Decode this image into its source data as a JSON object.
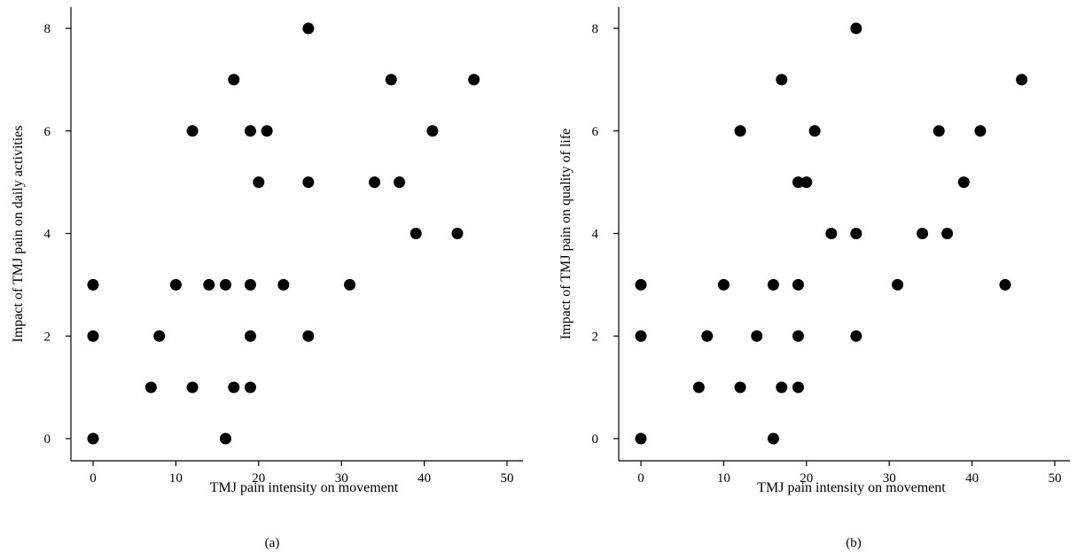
{
  "chart_data": [
    {
      "type": "scatter",
      "panel_label": "(a)",
      "xlabel": "TMJ pain intensity on movement",
      "ylabel": "Impact of TMJ pain on daily activities",
      "xlim": [
        0,
        50
      ],
      "ylim": [
        0,
        8
      ],
      "xticks": [
        0,
        10,
        20,
        30,
        40,
        50
      ],
      "yticks": [
        0,
        2,
        4,
        6,
        8
      ],
      "grid": false,
      "points": [
        [
          26,
          8
        ],
        [
          17,
          7
        ],
        [
          36,
          7
        ],
        [
          46,
          7
        ],
        [
          12,
          6
        ],
        [
          19,
          6
        ],
        [
          21,
          6
        ],
        [
          41,
          6
        ],
        [
          20,
          5
        ],
        [
          26,
          5
        ],
        [
          34,
          5
        ],
        [
          37,
          5
        ],
        [
          39,
          4
        ],
        [
          44,
          4
        ],
        [
          0,
          3
        ],
        [
          10,
          3
        ],
        [
          14,
          3
        ],
        [
          16,
          3
        ],
        [
          19,
          3
        ],
        [
          23,
          3
        ],
        [
          31,
          3
        ],
        [
          0,
          2
        ],
        [
          8,
          2
        ],
        [
          19,
          2
        ],
        [
          26,
          2
        ],
        [
          7,
          1
        ],
        [
          12,
          1
        ],
        [
          17,
          1
        ],
        [
          19,
          1
        ],
        [
          0,
          0
        ],
        [
          16,
          0
        ]
      ]
    },
    {
      "type": "scatter",
      "panel_label": "(b)",
      "xlabel": "TMJ pain intensity on movement",
      "ylabel": "Impact of TMJ pain on quality of life",
      "xlim": [
        0,
        50
      ],
      "ylim": [
        0,
        8
      ],
      "xticks": [
        0,
        10,
        20,
        30,
        40,
        50
      ],
      "yticks": [
        0,
        2,
        4,
        6,
        8
      ],
      "grid": false,
      "points": [
        [
          26,
          8
        ],
        [
          17,
          7
        ],
        [
          46,
          7
        ],
        [
          12,
          6
        ],
        [
          21,
          6
        ],
        [
          36,
          6
        ],
        [
          41,
          6
        ],
        [
          19,
          5
        ],
        [
          20,
          5
        ],
        [
          39,
          5
        ],
        [
          23,
          4
        ],
        [
          26,
          4
        ],
        [
          34,
          4
        ],
        [
          37,
          4
        ],
        [
          0,
          3
        ],
        [
          10,
          3
        ],
        [
          16,
          3
        ],
        [
          19,
          3
        ],
        [
          31,
          3
        ],
        [
          44,
          3
        ],
        [
          0,
          2
        ],
        [
          8,
          2
        ],
        [
          14,
          2
        ],
        [
          19,
          2
        ],
        [
          26,
          2
        ],
        [
          7,
          1
        ],
        [
          12,
          1
        ],
        [
          17,
          1
        ],
        [
          19,
          1
        ],
        [
          0,
          0
        ],
        [
          16,
          0
        ]
      ]
    }
  ]
}
